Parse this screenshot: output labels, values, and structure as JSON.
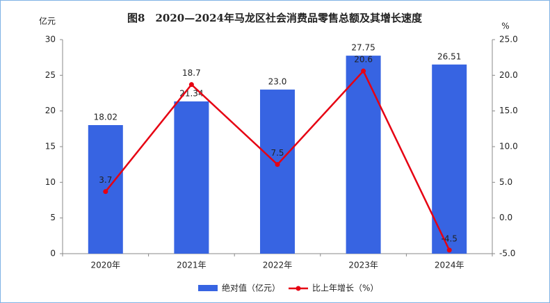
{
  "chart_data": {
    "type": "bar-line",
    "title": "图8　2020—2024年马龙区社会消费品零售总额及其增长速度",
    "y_label": "亿元",
    "y2_label": "%",
    "categories": [
      "2020年",
      "2021年",
      "2022年",
      "2023年",
      "2024年"
    ],
    "series": [
      {
        "name": "绝对值（亿元）",
        "type": "bar",
        "color": "#3764e2",
        "values": [
          18.02,
          21.34,
          23.0,
          27.75,
          26.51
        ],
        "value_labels": [
          "18.02",
          "21.34",
          "23.0",
          "27.75",
          "26.51"
        ]
      },
      {
        "name": "比上年增长（%）",
        "type": "line",
        "axis": "y2",
        "color": "#e60012",
        "values": [
          3.7,
          18.7,
          7.5,
          20.6,
          -4.5
        ]
      }
    ],
    "ylim": [
      0,
      30
    ],
    "yticks": [
      0,
      5,
      10,
      15,
      20,
      25,
      30
    ],
    "y2lim": [
      -5,
      25
    ],
    "y2ticks": [
      {
        "value": 25,
        "label": "25.0"
      },
      {
        "value": 20,
        "label": "20.0"
      },
      {
        "value": 15,
        "label": "15.0"
      },
      {
        "value": 10,
        "label": "10.0"
      },
      {
        "value": 5,
        "label": "5.0"
      },
      {
        "value": 0,
        "label": "0.0"
      },
      {
        "value": -5,
        "label": "-5.0"
      }
    ]
  }
}
